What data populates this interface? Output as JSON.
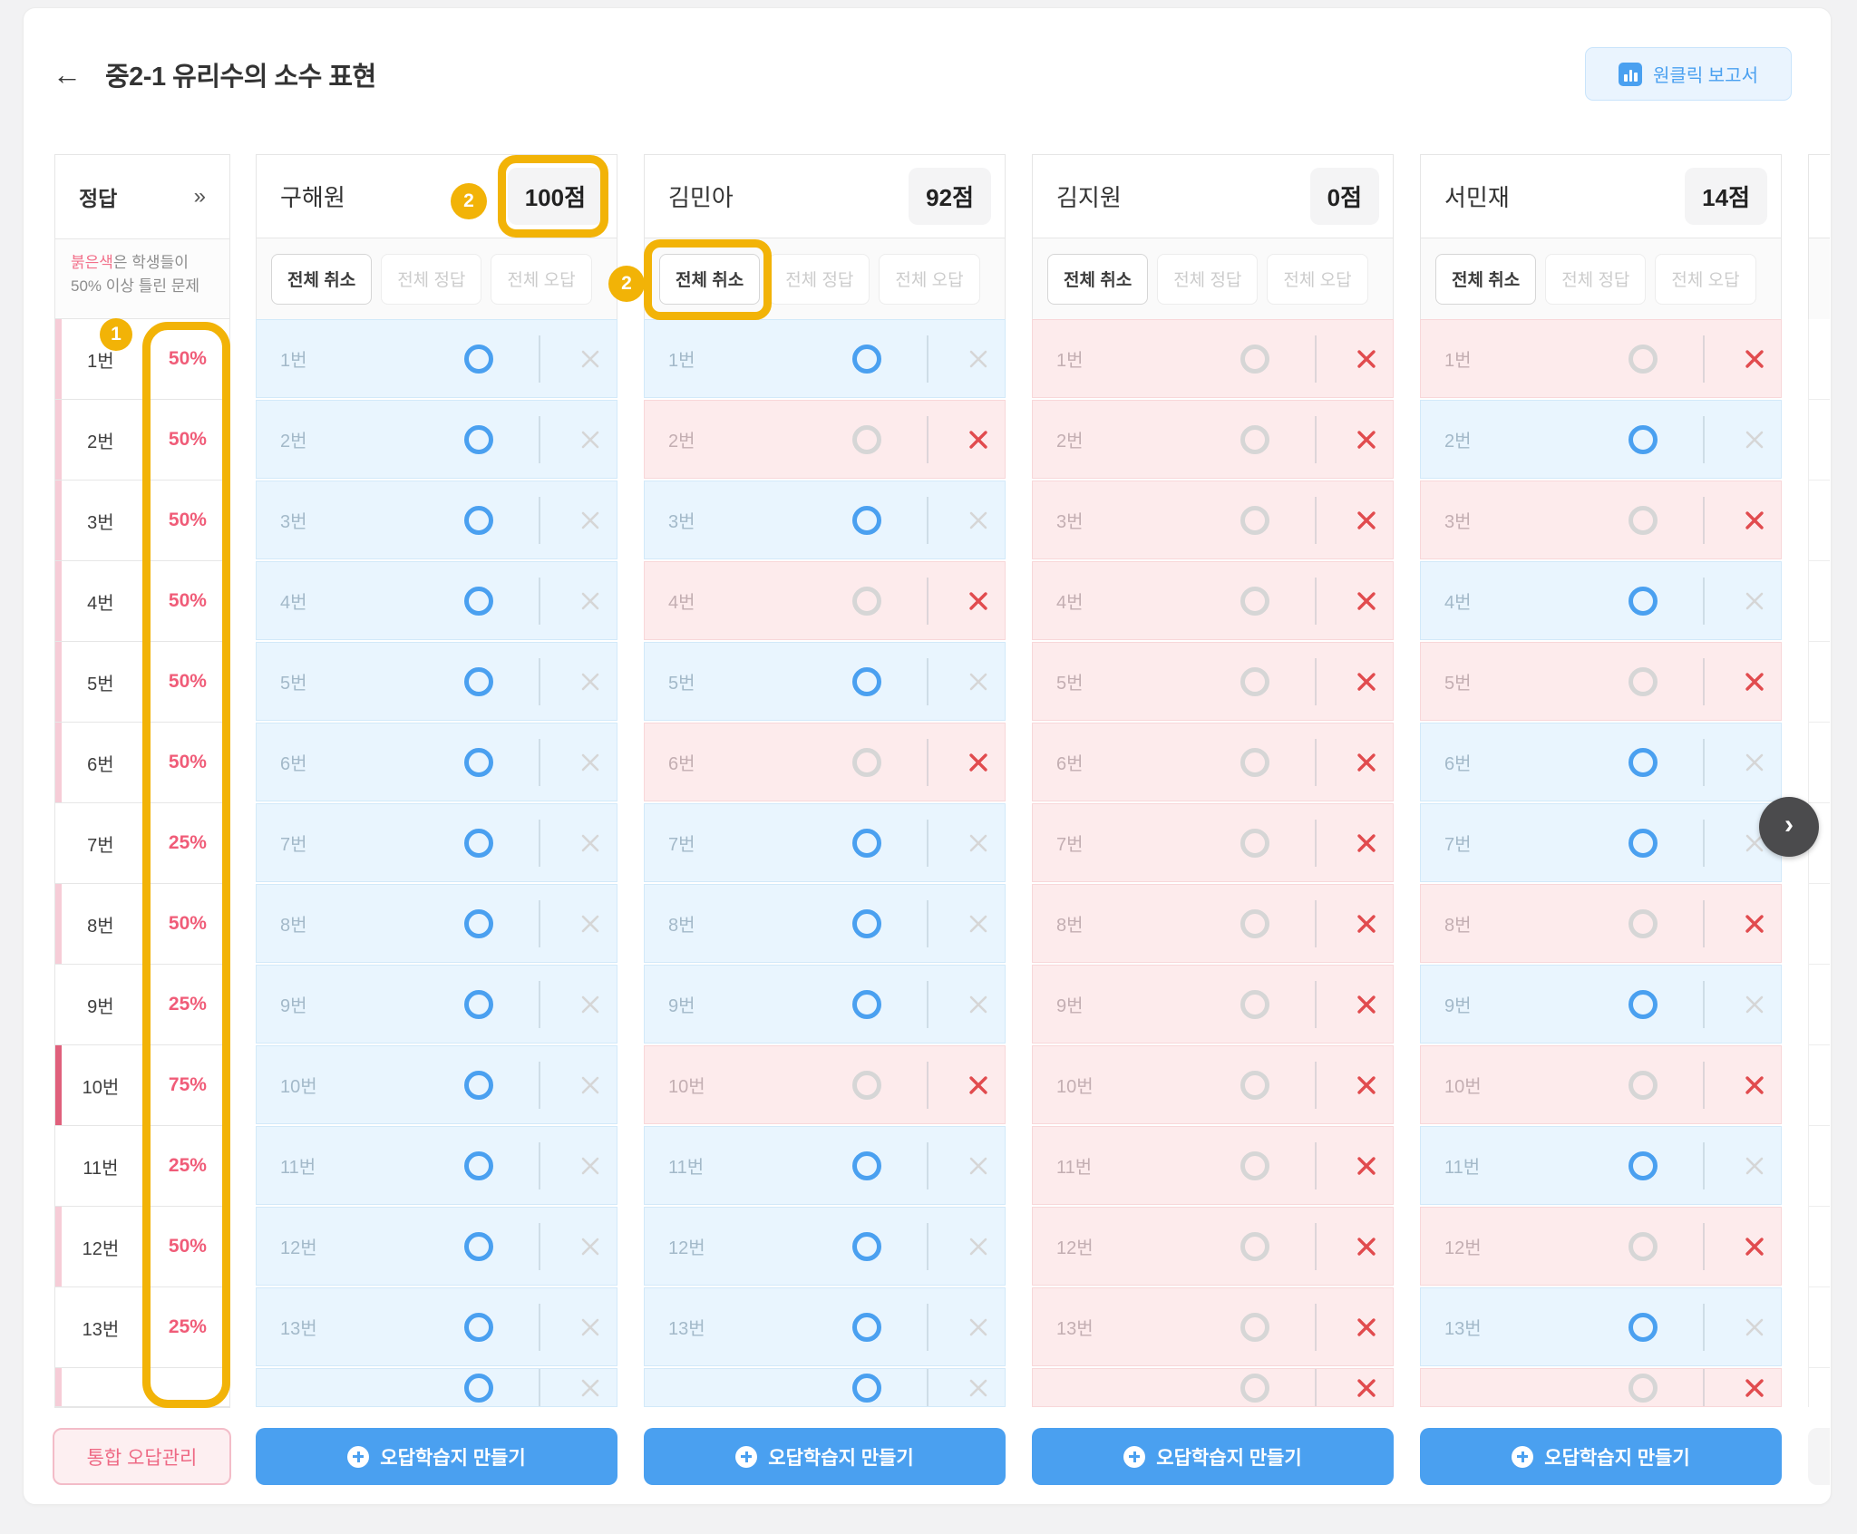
{
  "header": {
    "back_icon": "←",
    "title": "중2-1 유리수의 소수 표현",
    "report_button": "원클릭 보고서"
  },
  "answer_panel": {
    "title": "정답",
    "expand_icon": "»",
    "note_highlight": "붉은색",
    "note_line1_rest": "은 학생들이",
    "note_line2": "50% 이상 틀린 문제",
    "rows": [
      {
        "label": "1번",
        "pct": "50%",
        "stripe": "light"
      },
      {
        "label": "2번",
        "pct": "50%",
        "stripe": "light"
      },
      {
        "label": "3번",
        "pct": "50%",
        "stripe": "light"
      },
      {
        "label": "4번",
        "pct": "50%",
        "stripe": "light"
      },
      {
        "label": "5번",
        "pct": "50%",
        "stripe": "light"
      },
      {
        "label": "6번",
        "pct": "50%",
        "stripe": "light"
      },
      {
        "label": "7번",
        "pct": "25%",
        "stripe": "none"
      },
      {
        "label": "8번",
        "pct": "50%",
        "stripe": "light"
      },
      {
        "label": "9번",
        "pct": "25%",
        "stripe": "none"
      },
      {
        "label": "10번",
        "pct": "75%",
        "stripe": "dark"
      },
      {
        "label": "11번",
        "pct": "25%",
        "stripe": "none"
      },
      {
        "label": "12번",
        "pct": "50%",
        "stripe": "light"
      },
      {
        "label": "13번",
        "pct": "25%",
        "stripe": "none"
      }
    ],
    "footer_button": "통합 오답관리"
  },
  "row_labels": [
    "1번",
    "2번",
    "3번",
    "4번",
    "5번",
    "6번",
    "7번",
    "8번",
    "9번",
    "10번",
    "11번",
    "12번",
    "13번"
  ],
  "column_buttons": {
    "cancel": "전체 취소",
    "all_correct": "전체 정답",
    "all_wrong": "전체 오답"
  },
  "make_sheet_button": "오답학습지 만들기",
  "students": [
    {
      "name": "구해원",
      "score": "100점",
      "answers": [
        "O",
        "O",
        "O",
        "O",
        "O",
        "O",
        "O",
        "O",
        "O",
        "O",
        "O",
        "O",
        "O"
      ],
      "partial_answer": "O"
    },
    {
      "name": "김민아",
      "score": "92점",
      "answers": [
        "O",
        "X",
        "O",
        "X",
        "O",
        "X",
        "O",
        "O",
        "O",
        "X",
        "O",
        "O",
        "O"
      ],
      "partial_answer": "O"
    },
    {
      "name": "김지원",
      "score": "0점",
      "answers": [
        "X",
        "X",
        "X",
        "X",
        "X",
        "X",
        "X",
        "X",
        "X",
        "X",
        "X",
        "X",
        "X"
      ],
      "partial_answer": "X"
    },
    {
      "name": "서민재",
      "score": "14점",
      "answers": [
        "X",
        "O",
        "X",
        "O",
        "X",
        "O",
        "O",
        "X",
        "O",
        "X",
        "O",
        "X",
        "O"
      ],
      "partial_answer": "X"
    }
  ],
  "annotations": {
    "markers": [
      {
        "label": "1"
      },
      {
        "label": "2"
      },
      {
        "label": "2"
      }
    ]
  },
  "nav": {
    "chevron": "›"
  },
  "colors": {
    "accent_gold": "#f2b307",
    "primary_blue": "#4aa0f0",
    "wrong_red": "#e14b4e",
    "pct_pink": "#f05c78"
  }
}
